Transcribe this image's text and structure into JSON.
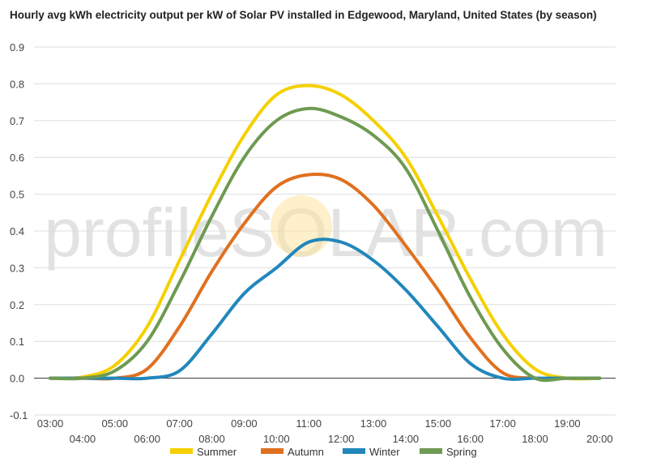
{
  "chart_data": {
    "type": "line",
    "title": "Hourly avg kWh electricity output per kW of Solar PV installed in Edgewood, Maryland, United States (by season)",
    "xlabel": "",
    "ylabel": "",
    "ylim": [
      -0.1,
      0.9
    ],
    "yticks": [
      "0.9",
      "0.8",
      "0.7",
      "0.6",
      "0.5",
      "0.4",
      "0.3",
      "0.2",
      "0.1",
      "0.0",
      "-0.1"
    ],
    "x": [
      "03:00",
      "04:00",
      "05:00",
      "06:00",
      "07:00",
      "08:00",
      "09:00",
      "10:00",
      "11:00",
      "12:00",
      "13:00",
      "14:00",
      "15:00",
      "16:00",
      "17:00",
      "18:00",
      "19:00",
      "20:00"
    ],
    "series": [
      {
        "name": "Summer",
        "color": "#f5d000",
        "values": [
          0.0,
          0.003,
          0.035,
          0.14,
          0.32,
          0.5,
          0.66,
          0.77,
          0.795,
          0.77,
          0.7,
          0.6,
          0.44,
          0.27,
          0.12,
          0.025,
          0.0,
          0.0
        ]
      },
      {
        "name": "Autumn",
        "color": "#e07020",
        "values": [
          0.0,
          0.0,
          0.0,
          0.025,
          0.14,
          0.29,
          0.42,
          0.52,
          0.553,
          0.54,
          0.47,
          0.36,
          0.24,
          0.11,
          0.015,
          0.0,
          0.0,
          0.0
        ]
      },
      {
        "name": "Winter",
        "color": "#2187bb",
        "values": [
          0.0,
          0.0,
          0.0,
          0.0,
          0.02,
          0.12,
          0.23,
          0.3,
          0.37,
          0.37,
          0.32,
          0.24,
          0.14,
          0.04,
          0.0,
          0.0,
          0.0,
          0.0
        ]
      },
      {
        "name": "Spring",
        "color": "#6e9a51",
        "values": [
          0.0,
          0.0,
          0.02,
          0.1,
          0.26,
          0.44,
          0.6,
          0.7,
          0.733,
          0.71,
          0.66,
          0.57,
          0.4,
          0.22,
          0.08,
          0.0,
          0.0,
          0.0
        ]
      }
    ],
    "legend": "bottom",
    "grid": true,
    "watermark": "profileSOLAR.com"
  }
}
